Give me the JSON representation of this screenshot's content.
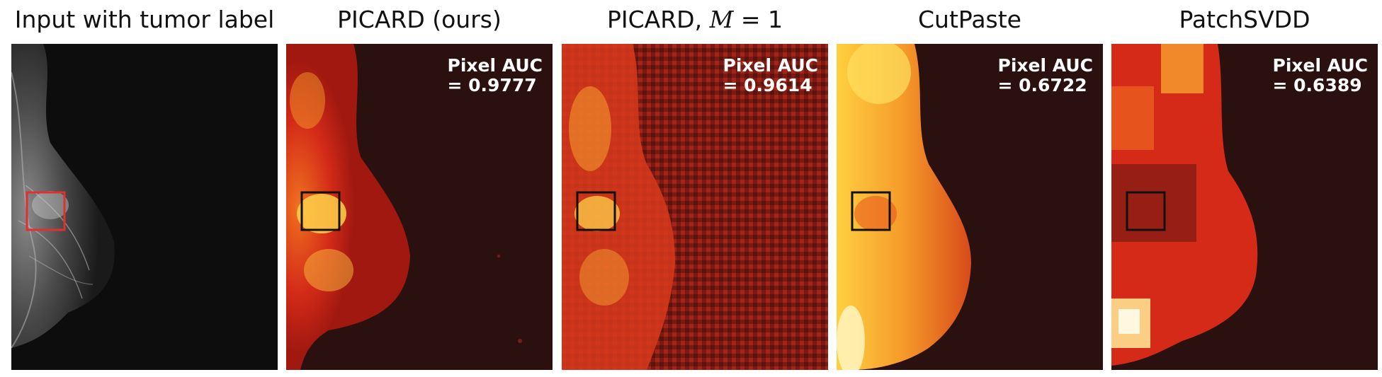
{
  "panels": [
    {
      "title": "Input with tumor label",
      "auc_label": "",
      "auc_value": "",
      "colormap": "gray"
    },
    {
      "title_prefix": "PICARD (ours)",
      "title_suffix": "",
      "auc_label": "Pixel AUC",
      "auc_value": "= 0.9777",
      "colormap": "hot"
    },
    {
      "title_prefix": "PICARD, ",
      "title_var": "M",
      "title_suffix": " = 1",
      "auc_label": "Pixel AUC",
      "auc_value": "= 0.9614",
      "colormap": "hot"
    },
    {
      "title_prefix": "CutPaste",
      "title_suffix": "",
      "auc_label": "Pixel AUC",
      "auc_value": "= 0.6722",
      "colormap": "hot"
    },
    {
      "title_prefix": "PatchSVDD",
      "title_suffix": "",
      "auc_label": "Pixel AUC",
      "auc_value": "= 0.6389",
      "colormap": "hot"
    }
  ],
  "colors": {
    "tumor_box_input": "#e03030",
    "tumor_box_maps": "#111111",
    "map_background": "#2b1010"
  }
}
